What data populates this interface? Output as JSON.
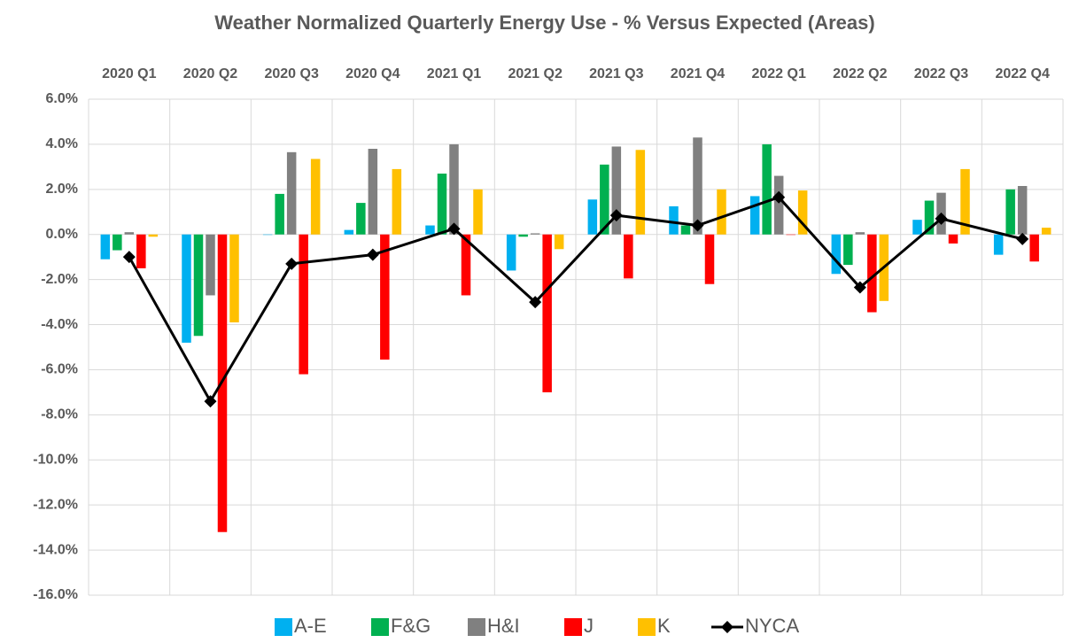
{
  "chart_data": {
    "type": "bar",
    "title": "Weather Normalized Quarterly Energy Use - % Versus Expected (Areas)",
    "categories": [
      "2020 Q1",
      "2020 Q2",
      "2020 Q3",
      "2020 Q4",
      "2021 Q1",
      "2021 Q2",
      "2021 Q3",
      "2021 Q4",
      "2022 Q1",
      "2022 Q2",
      "2022 Q3",
      "2022 Q4"
    ],
    "series": [
      {
        "name": "A-E",
        "color": "#00b0f0",
        "values": [
          -1.1,
          -4.8,
          0.0,
          0.2,
          0.4,
          -1.6,
          1.55,
          1.25,
          1.7,
          -1.75,
          0.65,
          -0.9
        ]
      },
      {
        "name": "F&G",
        "color": "#00b050",
        "values": [
          -0.7,
          -4.5,
          1.8,
          1.4,
          2.7,
          -0.1,
          3.1,
          0.4,
          4.0,
          -1.35,
          1.5,
          2.0
        ]
      },
      {
        "name": "H&I",
        "color": "#808080",
        "values": [
          0.1,
          -2.7,
          3.65,
          3.8,
          4.0,
          0.05,
          3.9,
          4.3,
          2.6,
          0.1,
          1.85,
          2.15
        ]
      },
      {
        "name": "J",
        "color": "#ff0000",
        "values": [
          -1.5,
          -13.2,
          -6.2,
          -5.55,
          -2.7,
          -7.0,
          -1.95,
          -2.2,
          0.0,
          -3.45,
          -0.4,
          -1.2
        ]
      },
      {
        "name": "K",
        "color": "#ffc000",
        "values": [
          -0.1,
          -3.9,
          3.35,
          2.9,
          2.0,
          -0.65,
          3.75,
          2.0,
          1.95,
          -2.95,
          2.9,
          0.3
        ]
      },
      {
        "name": "NYCA",
        "color": "#000000",
        "type": "line",
        "values": [
          -1.0,
          -7.4,
          -1.3,
          -0.9,
          0.25,
          -3.0,
          0.85,
          0.4,
          1.65,
          -2.35,
          0.7,
          -0.2
        ]
      }
    ],
    "ylim": [
      -16,
      6
    ],
    "yticks": [
      {
        "value": -16,
        "label": "-16.0%"
      },
      {
        "value": -14,
        "label": "-14.0%"
      },
      {
        "value": -12,
        "label": "-12.0%"
      },
      {
        "value": -10,
        "label": "-10.0%"
      },
      {
        "value": -8,
        "label": "-8.0%"
      },
      {
        "value": -6,
        "label": "-6.0%"
      },
      {
        "value": -4,
        "label": "-4.0%"
      },
      {
        "value": -2,
        "label": "-2.0%"
      },
      {
        "value": 0,
        "label": "0.0%"
      },
      {
        "value": 2,
        "label": "2.0%"
      },
      {
        "value": 4,
        "label": "4.0%"
      },
      {
        "value": 6,
        "label": "6.0%"
      }
    ],
    "grid": true,
    "legend": "bottom"
  }
}
